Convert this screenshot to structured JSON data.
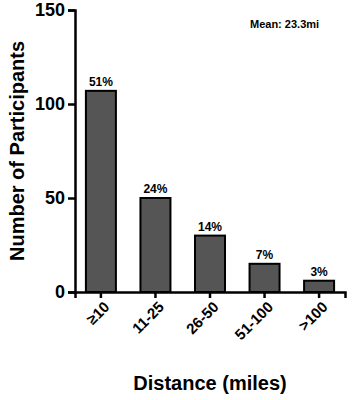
{
  "chart_data": {
    "type": "bar",
    "annotation": "Mean: 23.3mi",
    "x_label": "Distance (miles)",
    "y_label": "Number of Participants",
    "categories": [
      "≥10",
      "11-25",
      "26-50",
      "51-100",
      ">100"
    ],
    "values": [
      107,
      50,
      30,
      15,
      6
    ],
    "value_labels": [
      "51%",
      "24%",
      "14%",
      "7%",
      "3%"
    ],
    "data_labels": true,
    "color": "#555555",
    "ylim": [
      0,
      150
    ],
    "yticks": [
      0,
      50,
      100,
      150
    ],
    "grid": false
  }
}
